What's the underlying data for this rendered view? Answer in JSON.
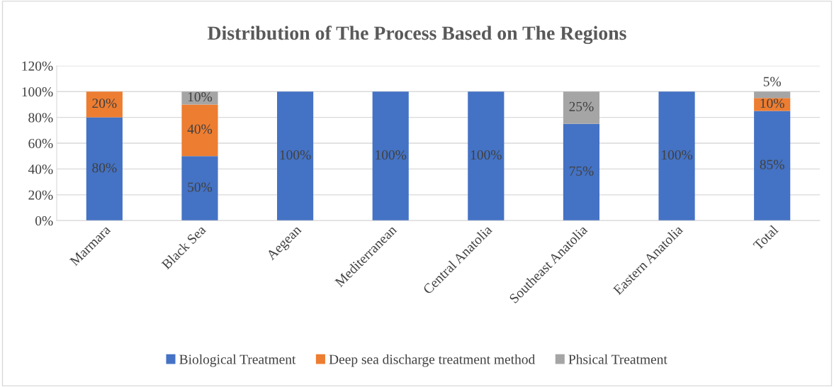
{
  "chart_data": {
    "type": "bar",
    "stacked": true,
    "title": "Distribution of The Process Based on The Regions",
    "categories": [
      "Marmara",
      "Black Sea",
      "Aegean",
      "Mediterranean",
      "Central Anatolia",
      "Southeast Anatolia",
      "Eastern Anatolia",
      "Total"
    ],
    "series": [
      {
        "name": "Biological Treatment",
        "color": "#4472c4",
        "values": [
          80,
          50,
          100,
          100,
          100,
          75,
          100,
          85
        ],
        "value_labels": [
          "80%",
          "50%",
          "100%",
          "100%",
          "100%",
          "75%",
          "100%",
          "85%"
        ]
      },
      {
        "name": "Deep sea discharge treatment method",
        "color": "#ed7d31",
        "values": [
          20,
          40,
          0,
          0,
          0,
          0,
          0,
          10
        ],
        "value_labels": [
          "20%",
          "40%",
          null,
          null,
          null,
          null,
          null,
          "10%"
        ]
      },
      {
        "name": "Phsical Treatment",
        "color": "#a5a5a5",
        "values": [
          0,
          10,
          0,
          0,
          0,
          25,
          0,
          5
        ],
        "value_labels": [
          null,
          "10%",
          null,
          null,
          null,
          "25%",
          null,
          "5%"
        ]
      }
    ],
    "ylim": [
      0,
      120
    ],
    "yticks": [
      {
        "value": 0,
        "label": "0%"
      },
      {
        "value": 20,
        "label": "20%"
      },
      {
        "value": 40,
        "label": "40%"
      },
      {
        "value": 60,
        "label": "60%"
      },
      {
        "value": 80,
        "label": "80%"
      },
      {
        "value": 100,
        "label": "100%"
      },
      {
        "value": 120,
        "label": "120%"
      }
    ],
    "grid": "y",
    "legend": "bottom"
  }
}
